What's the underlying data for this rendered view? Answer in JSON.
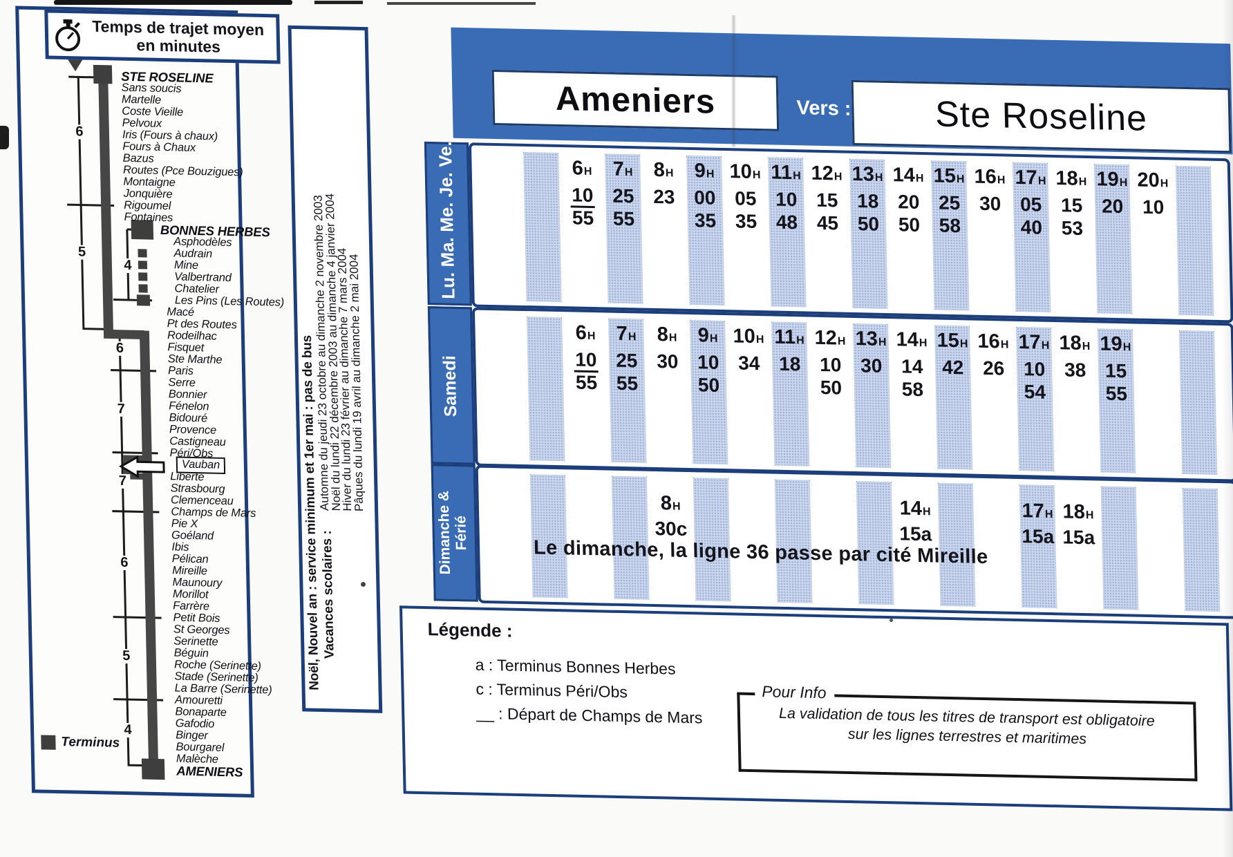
{
  "colors": {
    "accent_blue": "#3a6bb5",
    "navy_border": "#1c3e7a",
    "stripe_fill": "#ccd6ed",
    "stripe_dot": "#9bb1d8",
    "route_line": "#464646",
    "text_dark": "#14141a"
  },
  "hour_suffix": "H",
  "left_panel": {
    "title": "Temps de trajet moyen en minutes",
    "terminus_label": "Terminus",
    "segment_minutes": [
      "6",
      "5",
      "4",
      "6",
      "7",
      "7",
      "6",
      "5",
      "4"
    ],
    "stops": [
      {
        "n": "STE ROSELINE",
        "major": true
      },
      {
        "n": "Sans soucis"
      },
      {
        "n": "Martelle"
      },
      {
        "n": "Coste Vieille"
      },
      {
        "n": "Pelvoux"
      },
      {
        "n": "Iris (Fours à chaux)"
      },
      {
        "n": "Fours à Chaux"
      },
      {
        "n": "Bazus"
      },
      {
        "n": "Routes (Pce Bouzigues)"
      },
      {
        "n": "Montaigne"
      },
      {
        "n": "Jonquière"
      },
      {
        "n": "Rigoumel"
      },
      {
        "n": "Fontaines"
      },
      {
        "n": "BONNES HERBES",
        "major": true
      },
      {
        "n": "Asphodèles"
      },
      {
        "n": "Audrain"
      },
      {
        "n": "Mine"
      },
      {
        "n": "Valbertrand"
      },
      {
        "n": "Chatelier"
      },
      {
        "n": "Les Pins (Les Routes)"
      },
      {
        "n": "Macé"
      },
      {
        "n": "Pt des Routes"
      },
      {
        "n": "Rodeilhac"
      },
      {
        "n": "Fisquet"
      },
      {
        "n": "Ste Marthe"
      },
      {
        "n": "Paris"
      },
      {
        "n": "Serre"
      },
      {
        "n": "Bonnier"
      },
      {
        "n": "Fénelon"
      },
      {
        "n": "Bidouré"
      },
      {
        "n": "Provence"
      },
      {
        "n": "Castigneau"
      },
      {
        "n": "Péri/Obs"
      },
      {
        "n": "Vauban",
        "boxed": true
      },
      {
        "n": "Liberté"
      },
      {
        "n": "Strasbourg"
      },
      {
        "n": "Clemenceau"
      },
      {
        "n": "Champs de Mars"
      },
      {
        "n": "Pie X"
      },
      {
        "n": "Goéland"
      },
      {
        "n": "Ibis"
      },
      {
        "n": "Pélican"
      },
      {
        "n": "Mireille"
      },
      {
        "n": "Maunoury"
      },
      {
        "n": "Morillot"
      },
      {
        "n": "Farrère"
      },
      {
        "n": "Petit Bois"
      },
      {
        "n": "St Georges"
      },
      {
        "n": "Serinette"
      },
      {
        "n": "Béguin"
      },
      {
        "n": "Roche (Serinette)"
      },
      {
        "n": "Stade (Serinette)"
      },
      {
        "n": "La Barre (Serinette)"
      },
      {
        "n": "Amouretti"
      },
      {
        "n": "Bonaparte"
      },
      {
        "n": "Gafodio"
      },
      {
        "n": "Binger"
      },
      {
        "n": "Bourgarel"
      },
      {
        "n": "Malèche"
      },
      {
        "n": "AMENIERS",
        "major": true
      }
    ]
  },
  "middle_panel": {
    "line1": "Noël, Nouvel an : service minimum et 1er mai : pas de bus",
    "label": "Vacances scolaires :",
    "dates": [
      "Automne du jeudi 23 octobre au dimanche 2 novembre 2003",
      "Noël  du lundi 22 décembre 2003 au dimanche 4  janvier 2004",
      "Hiver du lundi 23 février au  dimanche 7 mars 2004",
      "Pâques du lundi 19 avril au  dimanche 2 mai 2004"
    ]
  },
  "header": {
    "origin": "Ameniers",
    "vers_label": "Vers :",
    "destination": "Ste Roseline"
  },
  "tables": [
    {
      "day_label": "Lu. Ma. Me. Je. Ve.",
      "columns": [
        {
          "hour": "6",
          "minutes": [
            {
              "v": "10",
              "u": true
            },
            {
              "v": "55"
            }
          ]
        },
        {
          "hour": "7",
          "minutes": [
            {
              "v": "25"
            },
            {
              "v": "55"
            }
          ]
        },
        {
          "hour": "8",
          "minutes": [
            {
              "v": "23"
            }
          ]
        },
        {
          "hour": "9",
          "minutes": [
            {
              "v": "00"
            },
            {
              "v": "35"
            }
          ]
        },
        {
          "hour": "10",
          "minutes": [
            {
              "v": "05"
            },
            {
              "v": "35"
            }
          ]
        },
        {
          "hour": "11",
          "minutes": [
            {
              "v": "10"
            },
            {
              "v": "48"
            }
          ]
        },
        {
          "hour": "12",
          "minutes": [
            {
              "v": "15"
            },
            {
              "v": "45"
            }
          ]
        },
        {
          "hour": "13",
          "minutes": [
            {
              "v": "18"
            },
            {
              "v": "50"
            }
          ]
        },
        {
          "hour": "14",
          "minutes": [
            {
              "v": "20"
            },
            {
              "v": "50"
            }
          ]
        },
        {
          "hour": "15",
          "minutes": [
            {
              "v": "25"
            },
            {
              "v": "58"
            }
          ]
        },
        {
          "hour": "16",
          "minutes": [
            {
              "v": "30"
            }
          ]
        },
        {
          "hour": "17",
          "minutes": [
            {
              "v": "05"
            },
            {
              "v": "40"
            }
          ]
        },
        {
          "hour": "18",
          "minutes": [
            {
              "v": "15"
            },
            {
              "v": "53"
            }
          ]
        },
        {
          "hour": "19",
          "minutes": [
            {
              "v": "20"
            }
          ]
        },
        {
          "hour": "20",
          "minutes": [
            {
              "v": "10"
            }
          ]
        }
      ]
    },
    {
      "day_label": "Samedi",
      "columns": [
        {
          "hour": "6",
          "minutes": [
            {
              "v": "10",
              "u": true
            },
            {
              "v": "55"
            }
          ]
        },
        {
          "hour": "7",
          "minutes": [
            {
              "v": "25"
            },
            {
              "v": "55"
            }
          ]
        },
        {
          "hour": "8",
          "minutes": [
            {
              "v": "30"
            }
          ]
        },
        {
          "hour": "9",
          "minutes": [
            {
              "v": "10"
            },
            {
              "v": "50"
            }
          ]
        },
        {
          "hour": "10",
          "minutes": [
            {
              "v": "34"
            }
          ]
        },
        {
          "hour": "11",
          "minutes": [
            {
              "v": "18"
            }
          ]
        },
        {
          "hour": "12",
          "minutes": [
            {
              "v": "10"
            },
            {
              "v": "50"
            }
          ]
        },
        {
          "hour": "13",
          "minutes": [
            {
              "v": "30"
            }
          ]
        },
        {
          "hour": "14",
          "minutes": [
            {
              "v": "14"
            },
            {
              "v": "58"
            }
          ]
        },
        {
          "hour": "15",
          "minutes": [
            {
              "v": "42"
            }
          ]
        },
        {
          "hour": "16",
          "minutes": [
            {
              "v": "26"
            }
          ]
        },
        {
          "hour": "17",
          "minutes": [
            {
              "v": "10"
            },
            {
              "v": "54"
            }
          ]
        },
        {
          "hour": "18",
          "minutes": [
            {
              "v": "38"
            }
          ]
        },
        {
          "hour": "19",
          "minutes": [
            {
              "v": "15"
            },
            {
              "v": "55"
            }
          ]
        }
      ]
    },
    {
      "day_label_lines": [
        "Dimanche &",
        "Férié"
      ],
      "note": "Le dimanche, la ligne 36 passe par cité Mireille",
      "columns": [
        {
          "hour": "8",
          "minutes": [
            {
              "v": "30c"
            }
          ]
        },
        {
          "hour": "14",
          "minutes": [
            {
              "v": "15a"
            }
          ]
        },
        {
          "hour": "17",
          "minutes": [
            {
              "v": "15a"
            }
          ]
        },
        {
          "hour": "18",
          "minutes": [
            {
              "v": "15a"
            }
          ]
        }
      ]
    }
  ],
  "legend": {
    "title": "Légende :",
    "items": [
      "a : Terminus Bonnes Herbes",
      "c : Terminus Péri/Obs",
      "__ : Départ de Champs de Mars"
    ]
  },
  "pour_info": {
    "label": "Pour Info",
    "lines": [
      "La  validation de tous les titres de transport est obligatoire",
      "sur les lignes terrestres et maritimes"
    ]
  }
}
